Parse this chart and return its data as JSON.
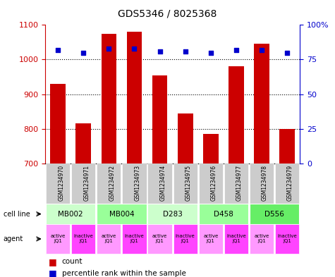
{
  "title": "GDS5346 / 8025368",
  "samples": [
    "GSM1234970",
    "GSM1234971",
    "GSM1234972",
    "GSM1234973",
    "GSM1234974",
    "GSM1234975",
    "GSM1234976",
    "GSM1234977",
    "GSM1234978",
    "GSM1234979"
  ],
  "counts": [
    930,
    815,
    1075,
    1080,
    955,
    845,
    785,
    980,
    1045,
    800
  ],
  "percentiles": [
    82,
    80,
    83,
    83,
    81,
    81,
    80,
    82,
    82,
    80
  ],
  "ylim_left": [
    700,
    1100
  ],
  "ylim_right": [
    0,
    100
  ],
  "yticks_left": [
    700,
    800,
    900,
    1000,
    1100
  ],
  "yticks_right": [
    0,
    25,
    50,
    75,
    100
  ],
  "cell_lines": [
    {
      "label": "MB002",
      "cols": [
        0,
        1
      ],
      "color": "#ccffcc"
    },
    {
      "label": "MB004",
      "cols": [
        2,
        3
      ],
      "color": "#99ff99"
    },
    {
      "label": "D283",
      "cols": [
        4,
        5
      ],
      "color": "#ccffcc"
    },
    {
      "label": "D458",
      "cols": [
        6,
        7
      ],
      "color": "#99ff99"
    },
    {
      "label": "D556",
      "cols": [
        8,
        9
      ],
      "color": "#66ee66"
    }
  ],
  "agents": [
    {
      "label": "active\nJQ1",
      "col": 0,
      "color": "#ff99ff"
    },
    {
      "label": "inactive\nJQ1",
      "col": 1,
      "color": "#ff44ff"
    },
    {
      "label": "active\nJQ1",
      "col": 2,
      "color": "#ff99ff"
    },
    {
      "label": "inactive\nJQ1",
      "col": 3,
      "color": "#ff44ff"
    },
    {
      "label": "active\nJQ1",
      "col": 4,
      "color": "#ff99ff"
    },
    {
      "label": "inactive\nJQ1",
      "col": 5,
      "color": "#ff44ff"
    },
    {
      "label": "active\nJQ1",
      "col": 6,
      "color": "#ff99ff"
    },
    {
      "label": "inactive\nJQ1",
      "col": 7,
      "color": "#ff44ff"
    },
    {
      "label": "active\nJQ1",
      "col": 8,
      "color": "#ff99ff"
    },
    {
      "label": "inactive\nJQ1",
      "col": 9,
      "color": "#ff44ff"
    }
  ],
  "bar_color": "#cc0000",
  "dot_color": "#0000cc",
  "bar_width": 0.6,
  "background_color": "#ffffff",
  "left_axis_color": "#cc0000",
  "right_axis_color": "#0000cc",
  "sample_box_color": "#cccccc",
  "n_samples": 10
}
